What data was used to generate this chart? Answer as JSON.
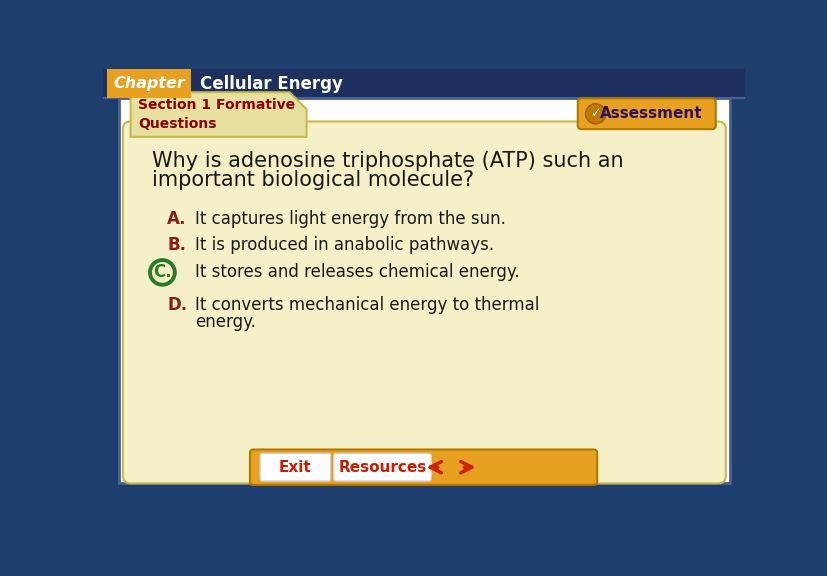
{
  "bg_color": "#1e3f6e",
  "header_bg": "#1e3060",
  "chapter_tab_color": "#e8a020",
  "chapter_tab_text": "Chapter",
  "chapter_title": "Cellular Energy",
  "section_tab_color": "#e8e0a0",
  "section_tab_text_color": "#8b0000",
  "main_card_color": "#f5f0c8",
  "question_text_line1": "Why is adenosine triphosphate (ATP) such an",
  "question_text_line2": "important biological molecule?",
  "question_color": "#1a1a1a",
  "answers": [
    {
      "letter": "A.",
      "text": "It captures light energy from the sun.",
      "letter_color": "#8b1a1a",
      "circled": false
    },
    {
      "letter": "B.",
      "text": "It is produced in anabolic pathways.",
      "letter_color": "#8b1a1a",
      "circled": false
    },
    {
      "letter": "C.",
      "text": "It stores and releases chemical energy.",
      "letter_color": "#2a7a2a",
      "circled": true
    },
    {
      "letter": "D.",
      "text": "It converts mechanical energy to thermal",
      "letter_color": "#8b1a1a",
      "circled": false
    }
  ],
  "answer_D_line2": "energy.",
  "assessment_btn_color": "#e8a020",
  "assessment_text": "Assessment",
  "exit_text": "Exit",
  "resources_text": "Resources",
  "arrow_color": "#cc2200",
  "white_area_color": "#ffffff",
  "nav_bar_color": "#e8a020"
}
